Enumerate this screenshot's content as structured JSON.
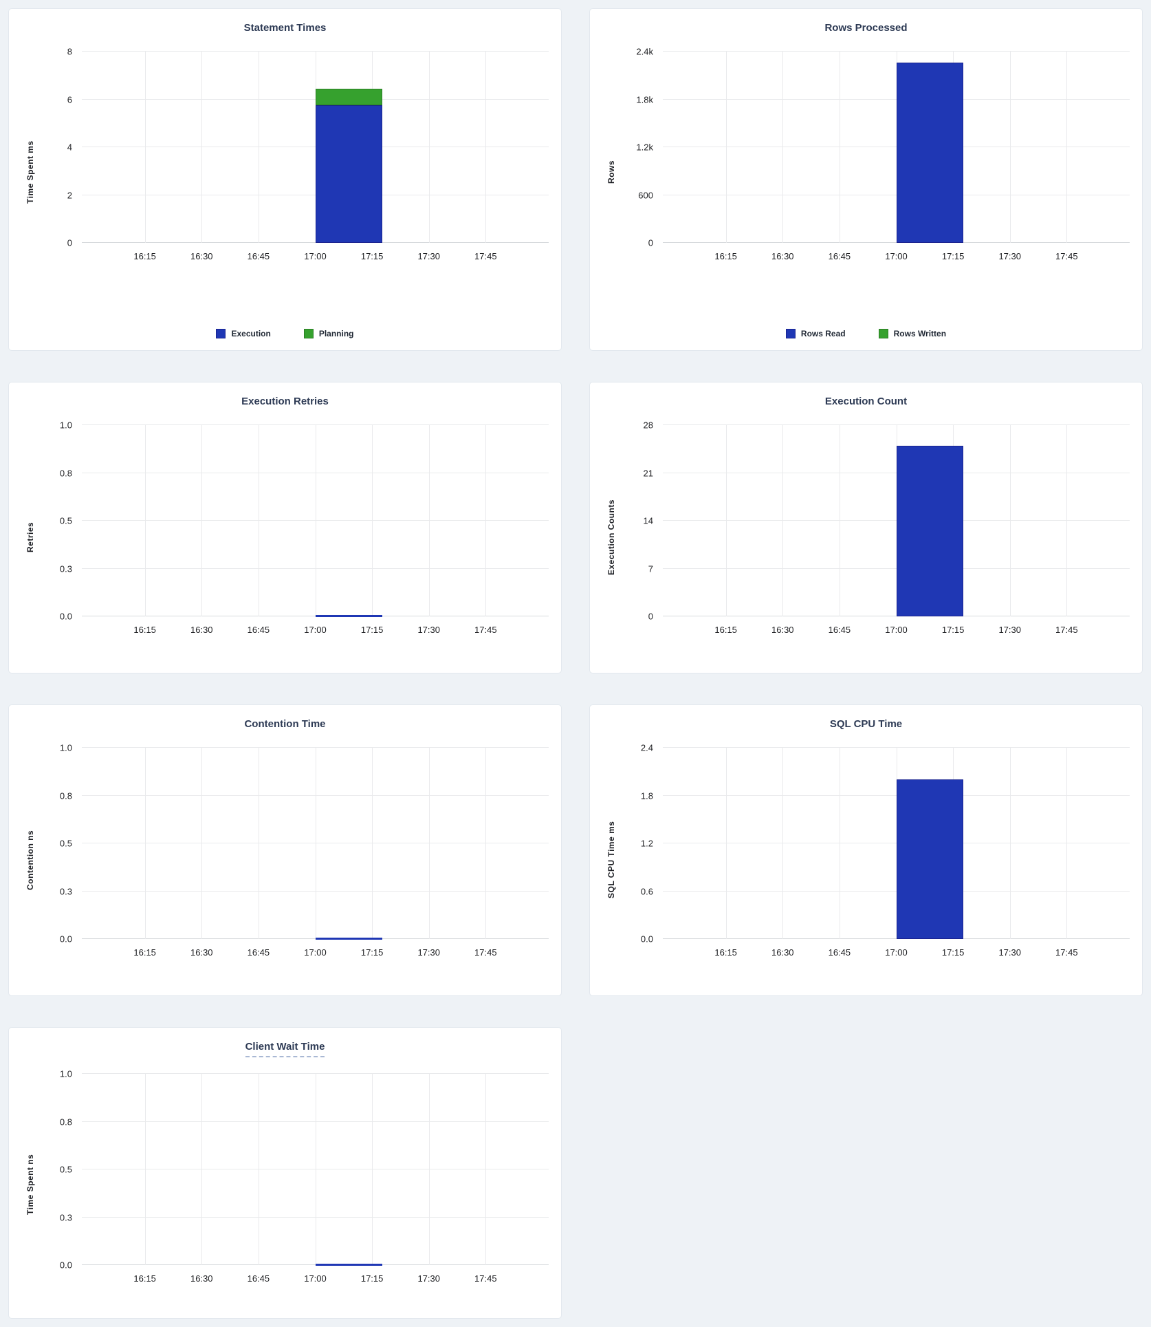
{
  "palette": {
    "blue": "#1f37b4",
    "blue_stroke": "#19228f",
    "green": "#36a12e",
    "green_stroke": "#2a7d24",
    "title_color": "#2d3a54",
    "page_background": "#eef2f6",
    "grid_color": "#e9eaec"
  },
  "chart_data": [
    {
      "type": "bar",
      "title": "Statement Times",
      "title_tooltip": false,
      "xlabel": "",
      "ylabel": "Time Spent ms",
      "x_tick_labels": [
        "16:15",
        "16:30",
        "16:45",
        "17:00",
        "17:15",
        "17:30",
        "17:45"
      ],
      "y_tick_labels": [
        "0",
        "2",
        "4",
        "6",
        "8"
      ],
      "ylim": [
        0,
        8
      ],
      "grid": true,
      "bucket_start": "17:00",
      "bucket_end": "17:15",
      "series": [
        {
          "name": "Execution",
          "color": "blue",
          "values": [
            5.75
          ]
        },
        {
          "name": "Planning",
          "color": "green",
          "values": [
            0.7
          ]
        }
      ],
      "legend": [
        {
          "label": "Execution",
          "color": "blue"
        },
        {
          "label": "Planning",
          "color": "green"
        }
      ],
      "legend_position": "bottom"
    },
    {
      "type": "bar",
      "title": "Rows Processed",
      "title_tooltip": false,
      "xlabel": "",
      "ylabel": "Rows",
      "x_tick_labels": [
        "16:15",
        "16:30",
        "16:45",
        "17:00",
        "17:15",
        "17:30",
        "17:45"
      ],
      "y_tick_labels": [
        "0",
        "600",
        "1.2k",
        "1.8k",
        "2.4k"
      ],
      "ylim": [
        0,
        2400
      ],
      "grid": true,
      "bucket_start": "17:00",
      "bucket_end": "17:15",
      "series": [
        {
          "name": "Rows Read",
          "color": "blue",
          "values": [
            2260
          ]
        },
        {
          "name": "Rows Written",
          "color": "green",
          "values": [
            0
          ]
        }
      ],
      "legend": [
        {
          "label": "Rows Read",
          "color": "blue"
        },
        {
          "label": "Rows Written",
          "color": "green"
        }
      ],
      "legend_position": "bottom"
    },
    {
      "type": "bar",
      "title": "Execution Retries",
      "title_tooltip": false,
      "xlabel": "",
      "ylabel": "Retries",
      "x_tick_labels": [
        "16:15",
        "16:30",
        "16:45",
        "17:00",
        "17:15",
        "17:30",
        "17:45"
      ],
      "y_tick_labels": [
        "0.0",
        "0.3",
        "0.5",
        "0.8",
        "1.0"
      ],
      "ylim": [
        0,
        1
      ],
      "grid": true,
      "bucket_start": "17:00",
      "bucket_end": "17:15",
      "series": [
        {
          "name": "Retries",
          "color": "blue",
          "values": [
            0
          ]
        }
      ],
      "legend": [],
      "legend_position": "none"
    },
    {
      "type": "bar",
      "title": "Execution Count",
      "title_tooltip": false,
      "xlabel": "",
      "ylabel": "Execution Counts",
      "x_tick_labels": [
        "16:15",
        "16:30",
        "16:45",
        "17:00",
        "17:15",
        "17:30",
        "17:45"
      ],
      "y_tick_labels": [
        "0",
        "7",
        "14",
        "21",
        "28"
      ],
      "ylim": [
        0,
        28
      ],
      "grid": true,
      "bucket_start": "17:00",
      "bucket_end": "17:15",
      "series": [
        {
          "name": "Execution Count",
          "color": "blue",
          "values": [
            25
          ]
        }
      ],
      "legend": [],
      "legend_position": "none"
    },
    {
      "type": "bar",
      "title": "Contention Time",
      "title_tooltip": false,
      "xlabel": "",
      "ylabel": "Contention ns",
      "x_tick_labels": [
        "16:15",
        "16:30",
        "16:45",
        "17:00",
        "17:15",
        "17:30",
        "17:45"
      ],
      "y_tick_labels": [
        "0.0",
        "0.3",
        "0.5",
        "0.8",
        "1.0"
      ],
      "ylim": [
        0,
        1
      ],
      "grid": true,
      "bucket_start": "17:00",
      "bucket_end": "17:15",
      "series": [
        {
          "name": "Contention",
          "color": "blue",
          "values": [
            0
          ]
        }
      ],
      "legend": [],
      "legend_position": "none"
    },
    {
      "type": "bar",
      "title": "SQL CPU Time",
      "title_tooltip": false,
      "xlabel": "",
      "ylabel": "SQL CPU Time ms",
      "x_tick_labels": [
        "16:15",
        "16:30",
        "16:45",
        "17:00",
        "17:15",
        "17:30",
        "17:45"
      ],
      "y_tick_labels": [
        "0.0",
        "0.6",
        "1.2",
        "1.8",
        "2.4"
      ],
      "ylim": [
        0,
        2.4
      ],
      "grid": true,
      "bucket_start": "17:00",
      "bucket_end": "17:15",
      "series": [
        {
          "name": "SQL CPU Time",
          "color": "blue",
          "values": [
            2.0
          ]
        }
      ],
      "legend": [],
      "legend_position": "none"
    },
    {
      "type": "bar",
      "title": "Client Wait Time",
      "title_tooltip": true,
      "xlabel": "",
      "ylabel": "Time Spent ns",
      "x_tick_labels": [
        "16:15",
        "16:30",
        "16:45",
        "17:00",
        "17:15",
        "17:30",
        "17:45"
      ],
      "y_tick_labels": [
        "0.0",
        "0.3",
        "0.5",
        "0.8",
        "1.0"
      ],
      "ylim": [
        0,
        1
      ],
      "grid": true,
      "bucket_start": "17:00",
      "bucket_end": "17:15",
      "series": [
        {
          "name": "Client Wait",
          "color": "blue",
          "values": [
            0
          ]
        }
      ],
      "legend": [],
      "legend_position": "none"
    }
  ]
}
